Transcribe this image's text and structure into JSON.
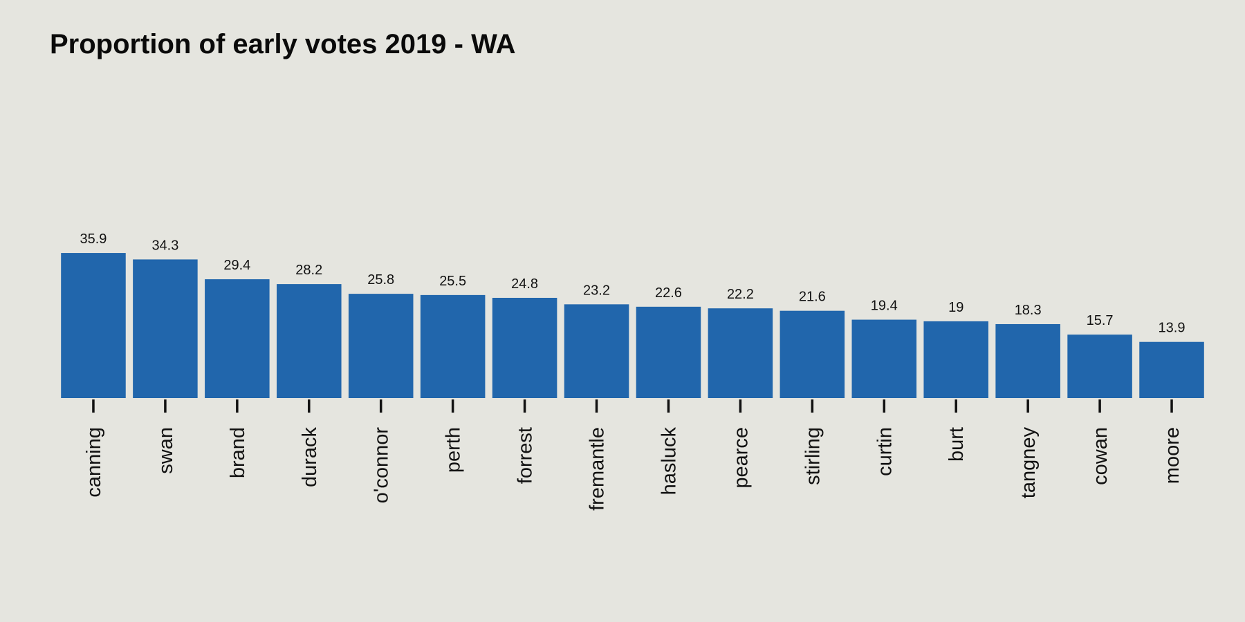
{
  "chart_data": {
    "type": "bar",
    "title": "Proportion of early votes 2019 - WA",
    "xlabel": "",
    "ylabel": "",
    "ylim": [
      0,
      40
    ],
    "grid": false,
    "legend": "none",
    "bar_color": "#2166ac",
    "background_color": "#e5e5df",
    "categories": [
      "canning",
      "swan",
      "brand",
      "durack",
      "o'connor",
      "perth",
      "forrest",
      "fremantle",
      "hasluck",
      "pearce",
      "stirling",
      "curtin",
      "burt",
      "tangney",
      "cowan",
      "moore"
    ],
    "values": [
      35.9,
      34.3,
      29.4,
      28.2,
      25.8,
      25.5,
      24.8,
      23.2,
      22.6,
      22.2,
      21.6,
      19.4,
      19,
      18.3,
      15.7,
      13.9
    ],
    "data_labels": [
      "35.9",
      "34.3",
      "29.4",
      "28.2",
      "25.8",
      "25.5",
      "24.8",
      "23.2",
      "22.6",
      "22.2",
      "21.6",
      "19.4",
      "19",
      "18.3",
      "15.7",
      "13.9"
    ]
  }
}
